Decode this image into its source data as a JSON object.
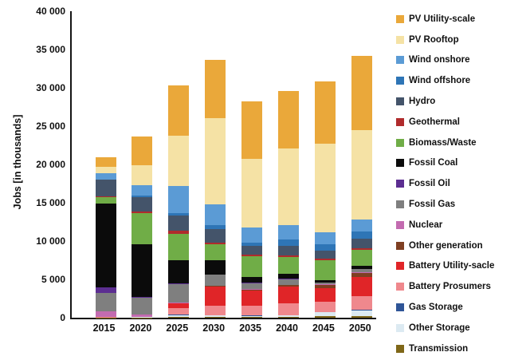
{
  "chart_data": {
    "type": "bar",
    "stacked": true,
    "title": "",
    "xlabel": "",
    "ylabel": "Jobs [in thousands]",
    "ylim": [
      0,
      40000
    ],
    "ytick_step": 5000,
    "ytick_labels": [
      "0",
      "5 000",
      "10 000",
      "15 000",
      "20 000",
      "25 000",
      "30 000",
      "35 000",
      "40 000"
    ],
    "grid": false,
    "legend_position": "right",
    "stack_order": "first series listed is the top segment of each bar",
    "categories": [
      "2015",
      "2020",
      "2025",
      "2030",
      "2035",
      "2040",
      "2045",
      "2050"
    ],
    "series": [
      {
        "name": "PV Utility-scale",
        "color": "#EAA83A",
        "values": [
          1190,
          3760,
          6600,
          7600,
          7500,
          7520,
          8050,
          9680
        ]
      },
      {
        "name": "PV Rooftop",
        "color": "#F5E2A5",
        "values": [
          880,
          2650,
          6600,
          11200,
          8950,
          10000,
          11600,
          11650
        ]
      },
      {
        "name": "Wind onshore",
        "color": "#5B9BD5",
        "values": [
          800,
          1350,
          3500,
          2800,
          1980,
          1800,
          1610,
          1610
        ]
      },
      {
        "name": "Wind offshore",
        "color": "#2E75B6",
        "values": [
          30,
          150,
          300,
          450,
          460,
          860,
          800,
          900
        ]
      },
      {
        "name": "Hydro",
        "color": "#44546A",
        "values": [
          2200,
          1900,
          1950,
          1750,
          1150,
          1290,
          1000,
          1250
        ]
      },
      {
        "name": "Geothermal",
        "color": "#B02B2C",
        "values": [
          100,
          250,
          450,
          220,
          200,
          200,
          200,
          200
        ]
      },
      {
        "name": "Biomass/Waste",
        "color": "#70AD47",
        "values": [
          760,
          4000,
          3400,
          2150,
          2660,
          2130,
          2670,
          2120
        ]
      },
      {
        "name": "Fossil Coal",
        "color": "#0B0B0B",
        "values": [
          11000,
          6900,
          3050,
          1800,
          800,
          700,
          250,
          400
        ]
      },
      {
        "name": "Fossil Oil",
        "color": "#5C2E91",
        "values": [
          720,
          150,
          120,
          80,
          60,
          50,
          40,
          30
        ]
      },
      {
        "name": "Fossil Gas",
        "color": "#7F7F7F",
        "values": [
          2400,
          2150,
          2400,
          1400,
          800,
          750,
          250,
          450
        ]
      },
      {
        "name": "Nuclear",
        "color": "#C36BB0",
        "values": [
          720,
          280,
          80,
          50,
          40,
          30,
          20,
          20
        ]
      },
      {
        "name": "Other generation",
        "color": "#7F3F22",
        "values": [
          30,
          40,
          80,
          80,
          150,
          200,
          430,
          580
        ]
      },
      {
        "name": "Battery Utility-sacle",
        "color": "#E02528",
        "values": [
          10,
          20,
          550,
          2500,
          1900,
          2150,
          1850,
          2500
        ]
      },
      {
        "name": "Battery Prosumers",
        "color": "#EF888D",
        "values": [
          10,
          30,
          900,
          1250,
          1300,
          1540,
          1260,
          1800
        ]
      },
      {
        "name": "Gas Storage",
        "color": "#2F5597",
        "values": [
          10,
          10,
          30,
          50,
          60,
          70,
          80,
          100
        ]
      },
      {
        "name": "Other Storage",
        "color": "#DCEAF2",
        "values": [
          10,
          20,
          250,
          150,
          130,
          145,
          540,
          720
        ]
      },
      {
        "name": "Transmission",
        "color": "#7F6718",
        "values": [
          30,
          40,
          100,
          120,
          130,
          150,
          160,
          180
        ]
      }
    ]
  }
}
